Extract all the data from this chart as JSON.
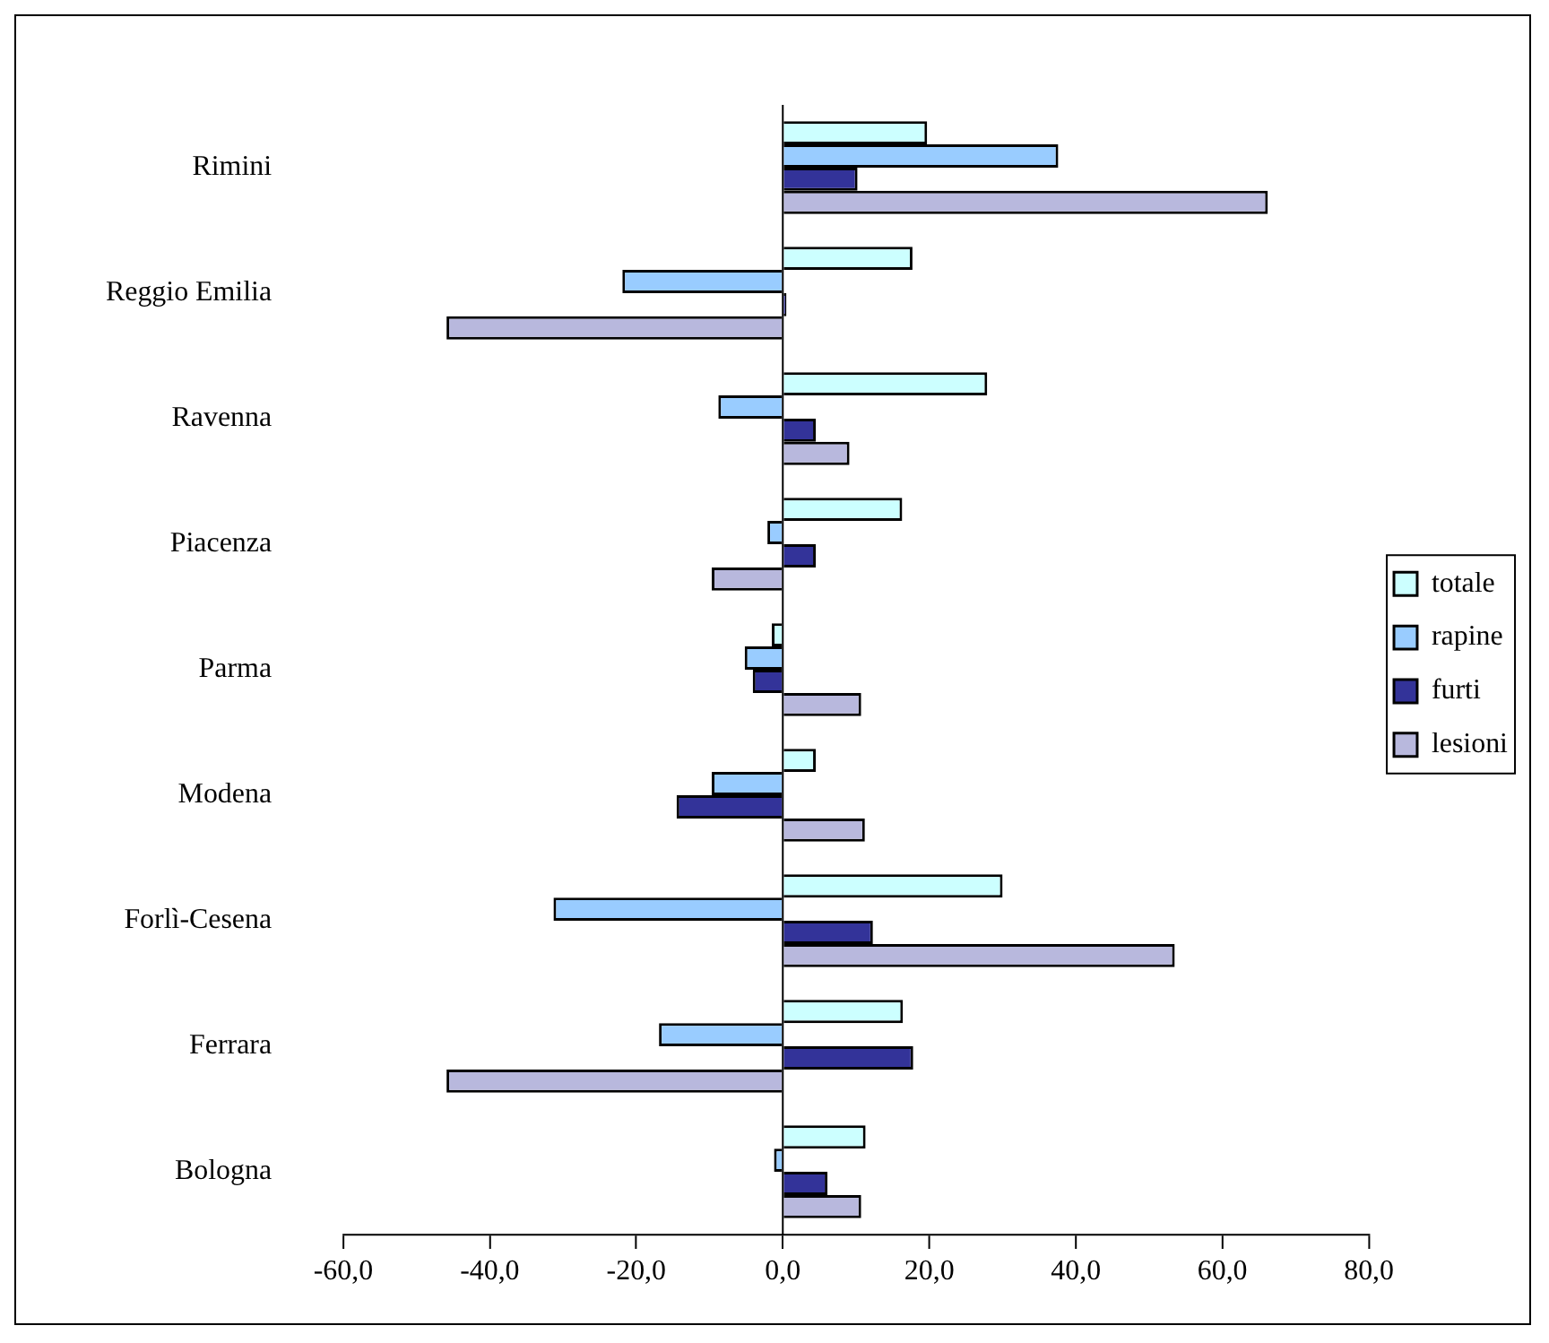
{
  "chart_data": {
    "type": "bar",
    "orientation": "horizontal",
    "categories": [
      "Rimini",
      "Reggio Emilia",
      "Ravenna",
      "Piacenza",
      "Parma",
      "Modena",
      "Forlì-Cesena",
      "Ferrara",
      "Bologna"
    ],
    "series": [
      {
        "name": "totale",
        "color": "#ccffff",
        "values": [
          19.7,
          17.7,
          27.9,
          16.3,
          -1.5,
          4.5,
          30.0,
          16.4,
          11.3
        ]
      },
      {
        "name": "rapine",
        "color": "#99ccff",
        "values": [
          37.6,
          -21.9,
          -8.8,
          -2.1,
          -5.2,
          -9.7,
          -31.3,
          -16.9,
          -1.2
        ]
      },
      {
        "name": "furti",
        "color": "#333399",
        "values": [
          10.2,
          0.5,
          4.5,
          4.5,
          -4.1,
          -14.5,
          12.3,
          17.8,
          6.1
        ]
      },
      {
        "name": "lesioni",
        "color": "#b8b8dd",
        "values": [
          66.2,
          -45.9,
          9.1,
          -9.7,
          10.7,
          11.2,
          53.5,
          -45.9,
          10.7
        ]
      }
    ],
    "xlim": [
      -60,
      80
    ],
    "xticks": [
      {
        "value": -60,
        "label": "-60,0"
      },
      {
        "value": -40,
        "label": "-40,0"
      },
      {
        "value": -20,
        "label": "-20,0"
      },
      {
        "value": 0,
        "label": "0,0"
      },
      {
        "value": 20,
        "label": "20,0"
      },
      {
        "value": 40,
        "label": "40,0"
      },
      {
        "value": 60,
        "label": "60,0"
      },
      {
        "value": 80,
        "label": "80,0"
      }
    ],
    "ref_lines": [
      {
        "axis": "x",
        "value": 0,
        "color": "#000000"
      }
    ],
    "grid": false,
    "legend": "right"
  }
}
